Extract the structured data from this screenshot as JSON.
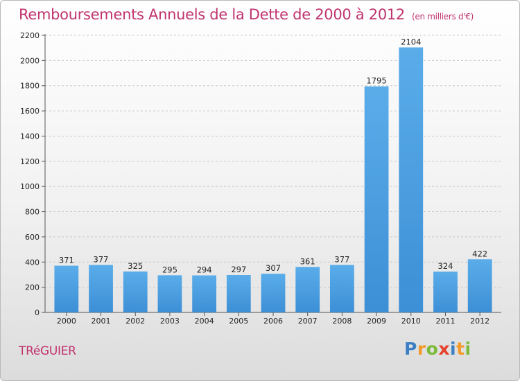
{
  "chart_data": {
    "type": "bar",
    "title": "Remboursements Annuels de la Dette de 2000 à 2012",
    "subtitle": "(en milliers d'€)",
    "categories": [
      "2000",
      "2001",
      "2002",
      "2003",
      "2004",
      "2005",
      "2006",
      "2007",
      "2008",
      "2009",
      "2010",
      "2011",
      "2012"
    ],
    "values": [
      371,
      377,
      325,
      295,
      294,
      297,
      307,
      361,
      377,
      1795,
      2104,
      324,
      422
    ],
    "ylim": [
      0,
      2200
    ],
    "yticks": [
      0,
      200,
      400,
      600,
      800,
      1000,
      1200,
      1400,
      1600,
      1800,
      2000,
      2200
    ],
    "grid": true,
    "legend": "none",
    "bar_color": "#3d8fd6",
    "bar_color_light": "#5aade9"
  },
  "footer": {
    "city": "TRéGUIER",
    "logo": {
      "letters": [
        "P",
        "r",
        "o",
        "x",
        "i",
        "t",
        "i"
      ],
      "colors": [
        "#3b7fc4",
        "#f39a2a",
        "#7cba3a",
        "#e5422b",
        "#3b7fc4",
        "#f39a2a",
        "#7cba3a"
      ]
    }
  },
  "colors": {
    "title": "#c0336e",
    "grid": "#c8c8c8"
  }
}
